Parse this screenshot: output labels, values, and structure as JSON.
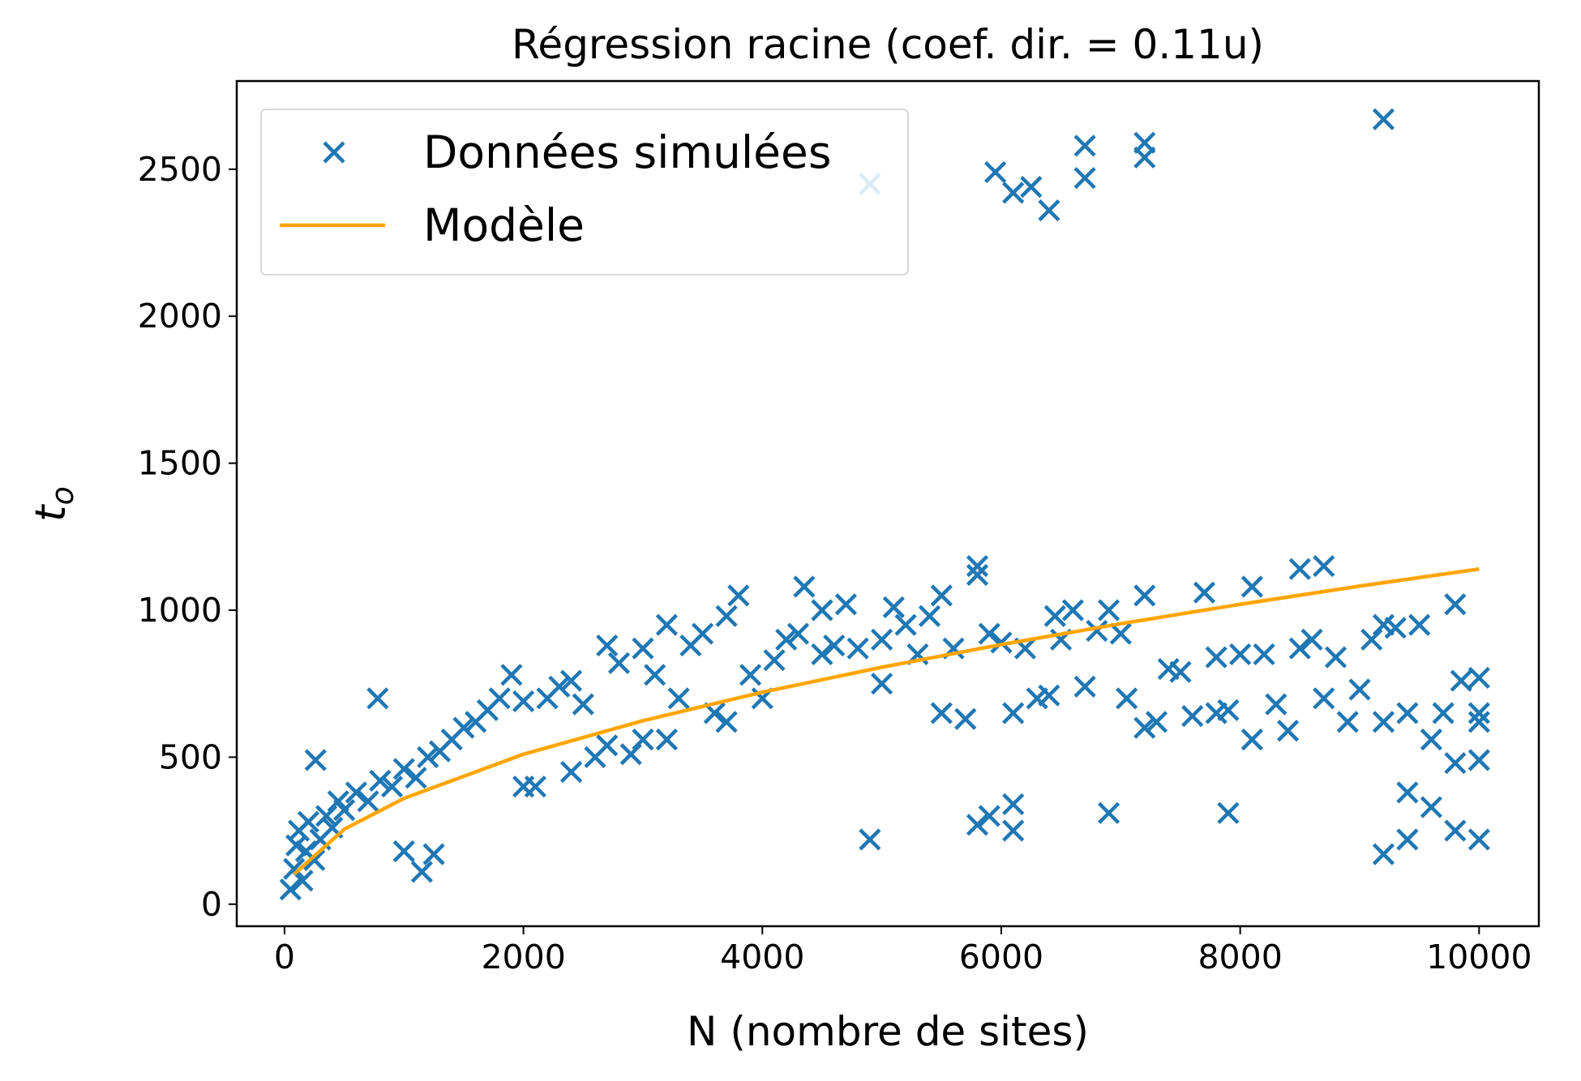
{
  "chart_data": {
    "type": "scatter",
    "title": "Régression racine (coef. dir. = 0.11u)",
    "xlabel": "N (nombre de sites)",
    "ylabel": "t",
    "ylabel_subscript": "o",
    "xlim": [
      -400,
      10500
    ],
    "ylim": [
      -75,
      2800
    ],
    "xticks": [
      0,
      2000,
      4000,
      6000,
      8000,
      10000
    ],
    "yticks": [
      0,
      500,
      1000,
      1500,
      2000,
      2500
    ],
    "legend": "upper left",
    "series": [
      {
        "name": "Données simulées",
        "type": "scatter",
        "color": "#1f77b4",
        "x": [
          50,
          80,
          100,
          120,
          150,
          180,
          200,
          250,
          260,
          300,
          350,
          400,
          450,
          500,
          600,
          700,
          780,
          800,
          900,
          1000,
          1000,
          1100,
          1150,
          1250,
          1200,
          1300,
          1400,
          1500,
          1600,
          1700,
          1800,
          1900,
          2000,
          2000,
          2100,
          2200,
          2300,
          2400,
          2400,
          2500,
          2600,
          2700,
          2700,
          2800,
          2900,
          3000,
          3000,
          3100,
          3200,
          3200,
          3300,
          3400,
          3500,
          3600,
          3700,
          3700,
          3800,
          3900,
          4000,
          4100,
          4200,
          4300,
          4350,
          4500,
          4500,
          4600,
          4700,
          4800,
          4900,
          4900,
          5000,
          5000,
          5100,
          5200,
          5300,
          5400,
          5500,
          5500,
          5600,
          5700,
          5800,
          5800,
          5800,
          5900,
          5900,
          5950,
          6000,
          6100,
          6100,
          6100,
          6100,
          6200,
          6250,
          6300,
          6400,
          6400,
          6450,
          6500,
          6600,
          6700,
          6700,
          6700,
          6800,
          6900,
          6900,
          7000,
          7050,
          7200,
          7200,
          7200,
          7200,
          7300,
          7400,
          7500,
          7600,
          7700,
          7800,
          7800,
          7900,
          7900,
          8000,
          8100,
          8100,
          8200,
          8300,
          8400,
          8500,
          8500,
          8600,
          8700,
          8700,
          8800,
          8900,
          9000,
          9100,
          9200,
          9200,
          9200,
          9200,
          9300,
          9400,
          9400,
          9400,
          9500,
          9600,
          9600,
          9700,
          9800,
          9800,
          9800,
          9850,
          10000,
          10000,
          10000,
          10000,
          10000
        ],
        "values": [
          50,
          120,
          200,
          250,
          80,
          180,
          280,
          150,
          490,
          220,
          300,
          260,
          350,
          320,
          380,
          350,
          700,
          420,
          400,
          180,
          460,
          430,
          110,
          170,
          500,
          520,
          560,
          600,
          620,
          660,
          700,
          780,
          690,
          400,
          400,
          700,
          740,
          760,
          450,
          680,
          500,
          880,
          540,
          820,
          510,
          870,
          560,
          780,
          950,
          560,
          700,
          880,
          920,
          650,
          980,
          620,
          1050,
          780,
          700,
          830,
          900,
          920,
          1080,
          1000,
          850,
          880,
          1020,
          870,
          220,
          2450,
          750,
          900,
          1010,
          950,
          850,
          980,
          1050,
          650,
          870,
          630,
          1150,
          1120,
          270,
          300,
          920,
          2490,
          890,
          340,
          250,
          650,
          2420,
          870,
          2440,
          700,
          2360,
          710,
          980,
          900,
          1000,
          2470,
          2580,
          740,
          930,
          310,
          1000,
          920,
          700,
          2540,
          2590,
          600,
          1050,
          620,
          800,
          790,
          640,
          1060,
          650,
          840,
          310,
          660,
          850,
          1080,
          560,
          850,
          680,
          590,
          870,
          1140,
          900,
          1150,
          700,
          840,
          620,
          730,
          900,
          2670,
          170,
          620,
          950,
          940,
          380,
          650,
          220,
          950,
          330,
          560,
          650,
          480,
          1020,
          250,
          760,
          770,
          650,
          490,
          220,
          620
        ]
      },
      {
        "name": "Modèle",
        "type": "line",
        "color": "#ffa500",
        "x": [
          80,
          500,
          1000,
          2000,
          3000,
          4000,
          5000,
          6000,
          7000,
          8000,
          9000,
          10000
        ],
        "values": [
          102,
          255,
          360,
          510,
          624,
          721,
          806,
          883,
          954,
          1020,
          1082,
          1140
        ]
      }
    ]
  }
}
